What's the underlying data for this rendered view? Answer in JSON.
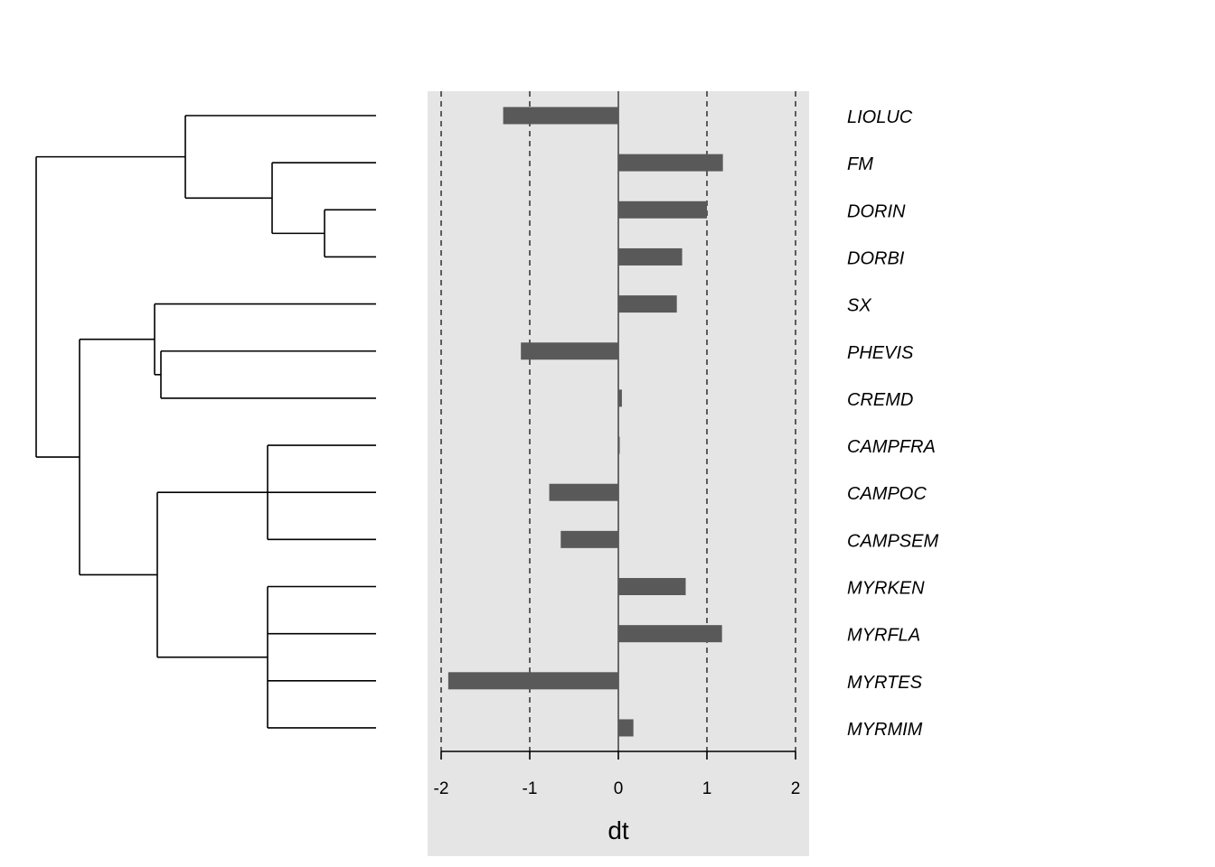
{
  "chart_data": {
    "type": "bar",
    "orientation": "horizontal",
    "xlabel": "dt",
    "xlim": [
      -2,
      2
    ],
    "xticks": [
      -2,
      -1,
      0,
      1,
      2
    ],
    "grid": "dashed vertical lines at ticks",
    "panel_background": "#e5e5e5",
    "bar_color": "#595959",
    "categories": [
      "LIOLUC",
      "FM",
      "DORIN",
      "DORBI",
      "SX",
      "PHEVIS",
      "CREMD",
      "CAMPFRA",
      "CAMPOC",
      "CAMPSEM",
      "MYRKEN",
      "MYRFLA",
      "MYRTES",
      "MYRMIM"
    ],
    "values": [
      -1.3,
      1.18,
      1.0,
      0.72,
      0.66,
      -1.1,
      0.04,
      0.01,
      -0.78,
      -0.65,
      0.76,
      1.17,
      -1.92,
      0.17
    ]
  }
}
